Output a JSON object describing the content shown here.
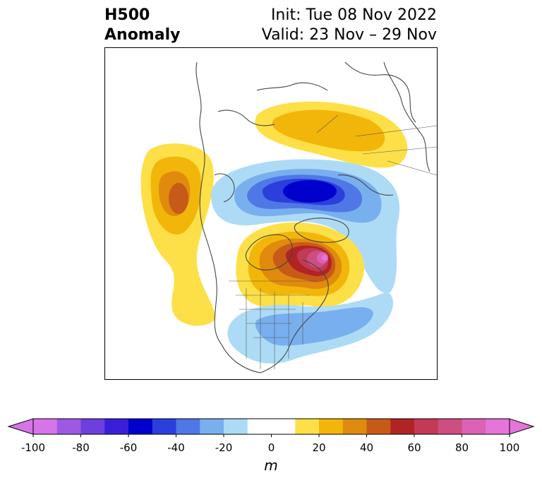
{
  "header": {
    "title_line1": "H500",
    "title_line2": "Anomaly",
    "init": "Init: Tue 08 Nov 2022",
    "valid": "Valid: 23 Nov – 29 Nov"
  },
  "map": {
    "projection": "polar stereographic, North America / Arctic",
    "features": [
      "coastlines",
      "country-borders",
      "us-state-borders"
    ],
    "anomaly_centers": [
      {
        "name": "positive-anomaly-greenland",
        "sign": "positive",
        "approx_peak_m": 90
      },
      {
        "name": "negative-anomaly-arctic",
        "sign": "negative",
        "approx_peak_m": -60
      },
      {
        "name": "positive-anomaly-northeast-pacific",
        "sign": "positive",
        "approx_peak_m": 40
      },
      {
        "name": "positive-anomaly-siberia",
        "sign": "positive",
        "approx_peak_m": 30
      },
      {
        "name": "negative-anomaly-eastern-us",
        "sign": "negative",
        "approx_peak_m": -30
      }
    ]
  },
  "colorbar": {
    "unit": "m",
    "ticks": [
      "-100",
      "-80",
      "-60",
      "-40",
      "-20",
      "0",
      "20",
      "40",
      "60",
      "80",
      "100"
    ],
    "min": -100,
    "max": 100,
    "step": 10,
    "extend": "both",
    "colors": [
      "#d575e8",
      "#9f58e2",
      "#6d3fdc",
      "#3a1fd8",
      "#0000cc",
      "#2a3fdc",
      "#4f78e6",
      "#78afee",
      "#addbf6",
      "#ffffff",
      "#ffffff",
      "#fde047",
      "#f2b60a",
      "#e08b0d",
      "#c85a18",
      "#b12424",
      "#c13a56",
      "#cc4f80",
      "#db62b4",
      "#e575d8"
    ],
    "extend_low_color": "#d575e8",
    "extend_high_color": "#e575d8"
  }
}
